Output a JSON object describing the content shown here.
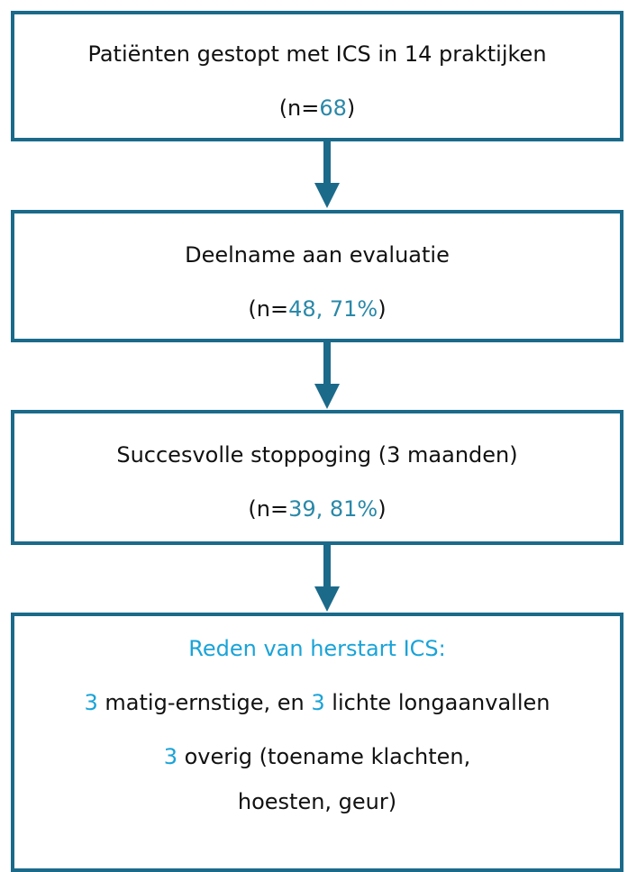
{
  "nodes": [
    {
      "lines": [
        [
          {
            "text": "Patiënten gestopt met ICS in 14 praktijken",
            "highlight": false
          }
        ],
        [
          {
            "text": "(n=",
            "highlight": false
          },
          {
            "text": "68",
            "highlight": true
          },
          {
            "text": ")",
            "highlight": false
          }
        ]
      ]
    },
    {
      "lines": [
        [
          {
            "text": "Deelname aan evaluatie",
            "highlight": false
          }
        ],
        [
          {
            "text": "(n=",
            "highlight": false
          },
          {
            "text": "48, 71%",
            "highlight": true
          },
          {
            "text": ")",
            "highlight": false
          }
        ]
      ]
    },
    {
      "lines": [
        [
          {
            "text": "Succesvolle stoppoging (3 maanden)",
            "highlight": false
          }
        ],
        [
          {
            "text": "(n=",
            "highlight": false
          },
          {
            "text": "39, 81%",
            "highlight": true
          },
          {
            "text": ")",
            "highlight": false
          }
        ]
      ]
    },
    {
      "lines": [
        [
          {
            "text": "Reden van herstart ICS:",
            "highlight": "title"
          }
        ],
        [
          {
            "text": "3",
            "highlight": "title"
          },
          {
            "text": " matig-ernstige, en ",
            "highlight": false
          },
          {
            "text": "3",
            "highlight": "title"
          },
          {
            "text": " lichte longaanvallen",
            "highlight": false
          }
        ],
        [
          {
            "text": "3",
            "highlight": "title"
          },
          {
            "text": " overig (toename klachten, hoesten, geur)",
            "highlight": false
          }
        ]
      ]
    }
  ]
}
